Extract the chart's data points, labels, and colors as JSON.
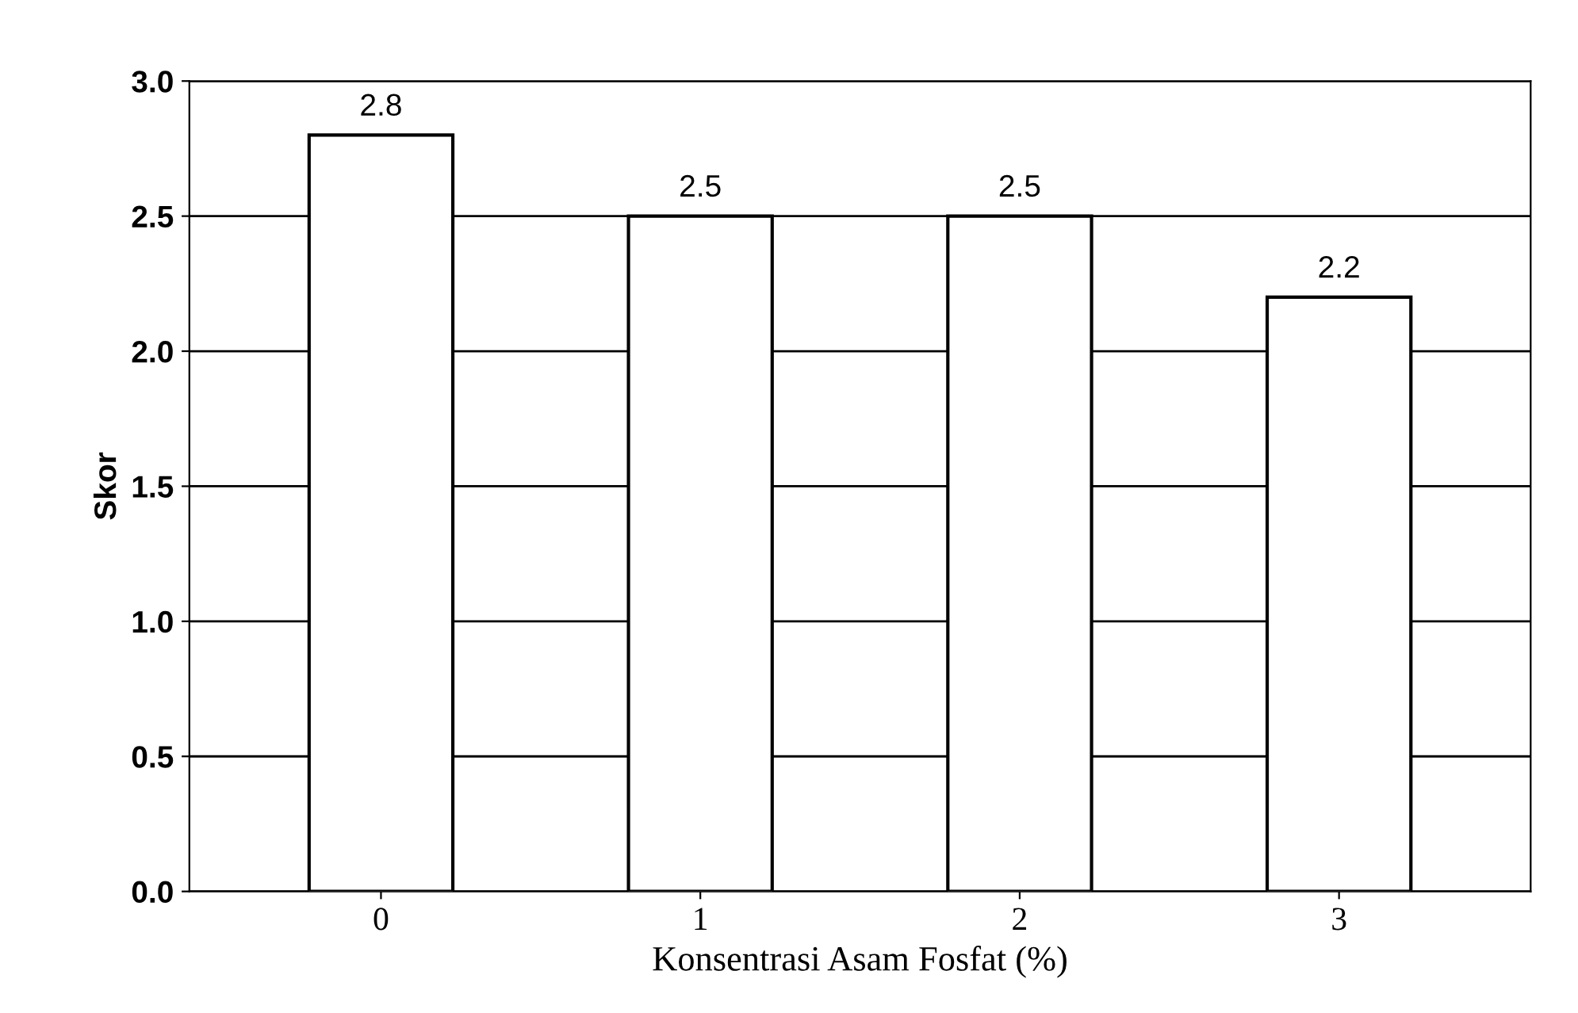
{
  "chart_data": {
    "type": "bar",
    "xlabel": "Konsentrasi Asam Fosfat (%)",
    "ylabel": "Skor",
    "categories": [
      "0",
      "1",
      "2",
      "3"
    ],
    "values": [
      2.8,
      2.5,
      2.5,
      2.2
    ],
    "color": "#ffffff",
    "ylim": [
      0,
      3.0
    ],
    "yticks": [
      {
        "value": 0,
        "label": "0.0"
      },
      {
        "value": 0.5,
        "label": "0.5"
      },
      {
        "value": 1.0,
        "label": "1.0"
      },
      {
        "value": 1.5,
        "label": "1.5"
      },
      {
        "value": 2.0,
        "label": "2.0"
      },
      {
        "value": 2.5,
        "label": "2.5"
      },
      {
        "value": 3.0,
        "label": "3.0"
      }
    ],
    "grid": "y",
    "data_labels": true
  }
}
